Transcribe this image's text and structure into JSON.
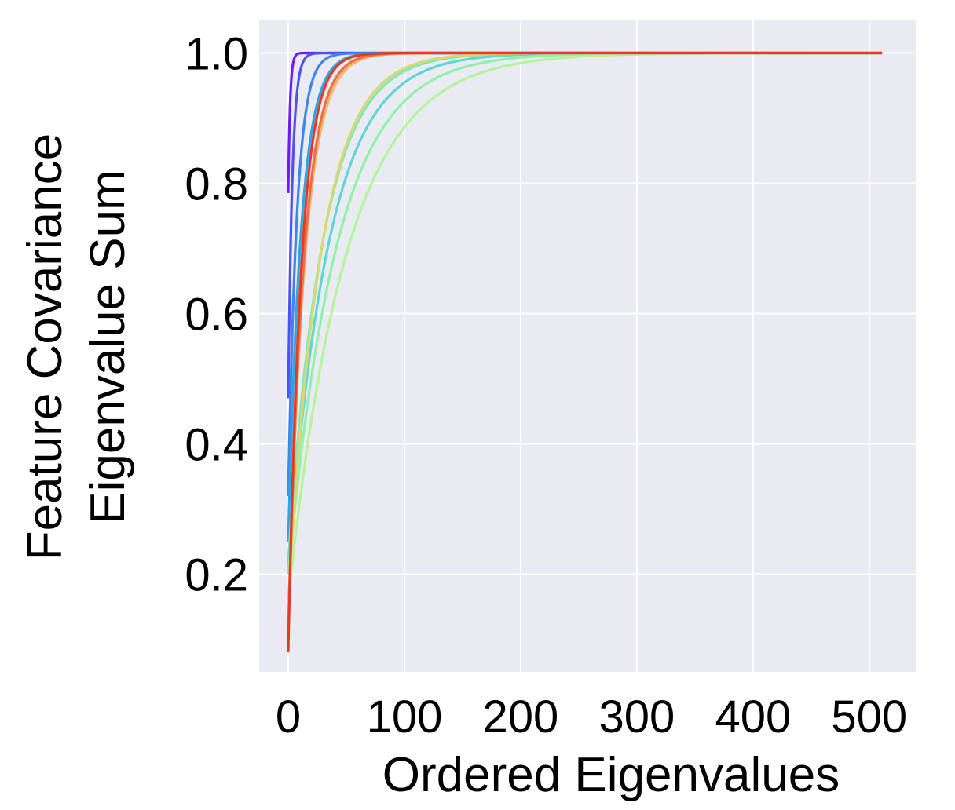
{
  "chart_data": {
    "type": "line",
    "title": "",
    "xlabel": "Ordered Eigenvalues",
    "ylabel": [
      "Feature Covariance",
      "Eigenvalue Sum"
    ],
    "xlim": [
      -25,
      540
    ],
    "ylim": [
      0.05,
      1.05
    ],
    "xticks": [
      0,
      100,
      200,
      300,
      400,
      500
    ],
    "xtick_labels": [
      "0",
      "100",
      "200",
      "300",
      "400",
      "500"
    ],
    "yticks": [
      0.2,
      0.4,
      0.6,
      0.8,
      1.0
    ],
    "ytick_labels": [
      "0.2",
      "0.4",
      "0.6",
      "0.8",
      "1.0"
    ],
    "grid": true,
    "background": "#eaeaf2",
    "grid_color": "#ffffff",
    "legend": "none",
    "x_max": 511,
    "series": [
      {
        "color": "#6a1ef5",
        "y0": 0.785,
        "tau": 1.6
      },
      {
        "color": "#4f52f2",
        "y0": 0.47,
        "tau": 3.5
      },
      {
        "color": "#3f84ec",
        "y0": 0.32,
        "tau": 7.5
      },
      {
        "color": "#2aa8e4",
        "y0": 0.25,
        "tau": 11
      },
      {
        "color": "#7ee8b8",
        "y0": 0.22,
        "tau": 30
      },
      {
        "color": "#5fd6d4",
        "y0": 0.21,
        "tau": 35
      },
      {
        "color": "#8ff2a6",
        "y0": 0.2,
        "tau": 42
      },
      {
        "color": "#b4f59a",
        "y0": 0.16,
        "tau": 50
      },
      {
        "color": "#d8d870",
        "y0": 0.16,
        "tau": 28
      },
      {
        "color": "#f5b565",
        "y0": 0.12,
        "tau": 14
      },
      {
        "color": "#ee6e45",
        "y0": 0.1,
        "tau": 13
      },
      {
        "color": "#e43a2a",
        "y0": 0.08,
        "tau": 11
      }
    ]
  }
}
